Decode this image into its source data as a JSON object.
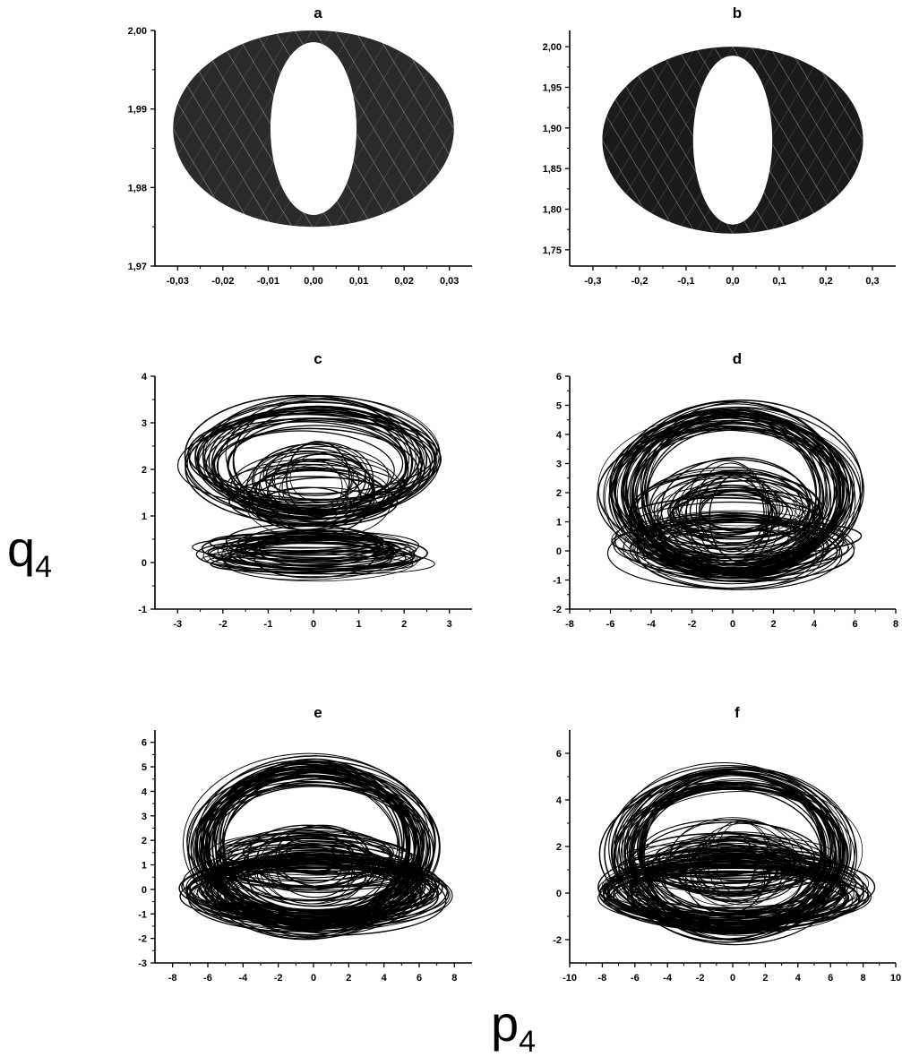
{
  "figure": {
    "ylabel": {
      "main": "q",
      "sub": "4"
    },
    "xlabel": {
      "main": "p",
      "sub": "4"
    }
  },
  "chart_data": [
    {
      "type": "line",
      "panel": "a",
      "xlim": [
        -0.035,
        0.035
      ],
      "ylim": [
        1.97,
        2.0
      ],
      "xticks": [
        -0.03,
        -0.02,
        -0.01,
        0.0,
        0.01,
        0.02,
        0.03
      ],
      "xtick_labels": [
        "-0,03",
        "-0,02",
        "-0,01",
        "0,00",
        "0,01",
        "0,02",
        "0,03"
      ],
      "yticks": [
        1.97,
        1.98,
        1.99,
        2.0
      ],
      "ytick_labels": [
        "1,97",
        "1,98",
        "1,99",
        "2,00"
      ],
      "shape": {
        "kind": "annulus",
        "center": [
          0.0,
          1.9875
        ],
        "outer": [
          0.031,
          0.0125
        ],
        "inner": [
          0.0095,
          0.011
        ],
        "fill": "#2b2b2b",
        "stripes": true
      }
    },
    {
      "type": "line",
      "panel": "b",
      "xlim": [
        -0.35,
        0.35
      ],
      "ylim": [
        1.73,
        2.02
      ],
      "xticks": [
        -0.3,
        -0.2,
        -0.1,
        0.0,
        0.1,
        0.2,
        0.3
      ],
      "xtick_labels": [
        "-0,3",
        "-0,2",
        "-0,1",
        "0,0",
        "0,1",
        "0,2",
        "0,3"
      ],
      "yticks": [
        1.75,
        1.8,
        1.85,
        1.9,
        1.95,
        2.0
      ],
      "ytick_labels": [
        "1,75",
        "1,80",
        "1,85",
        "1,90",
        "1,95",
        "2,00"
      ],
      "shape": {
        "kind": "annulus",
        "center": [
          0.0,
          1.885
        ],
        "outer": [
          0.28,
          0.115
        ],
        "inner": [
          0.085,
          0.104
        ],
        "fill": "#1a1a1a",
        "stripes": true
      }
    },
    {
      "type": "line",
      "panel": "c",
      "xlim": [
        -3.5,
        3.5
      ],
      "ylim": [
        -1,
        4
      ],
      "xticks": [
        -3,
        -2,
        -1,
        0,
        1,
        2,
        3
      ],
      "xtick_labels": [
        "-3",
        "-2",
        "-1",
        "0",
        "1",
        "2",
        "3"
      ],
      "yticks": [
        -1,
        0,
        1,
        2,
        3,
        4
      ],
      "ytick_labels": [
        "-1",
        "0",
        "1",
        "2",
        "3",
        "4"
      ],
      "shape": {
        "kind": "tangle",
        "seed": 11,
        "count": 95,
        "bands": [
          {
            "cy": [
              2.0,
              2.35
            ],
            "ry": [
              0.8,
              1.35
            ],
            "rx": [
              1.9,
              2.85
            ],
            "w": 0.38
          },
          {
            "cy": [
              1.2,
              1.9
            ],
            "ry": [
              0.3,
              0.9
            ],
            "rx": [
              0.6,
              2.0
            ],
            "w": 0.25
          },
          {
            "cy": [
              0.0,
              0.45
            ],
            "ry": [
              0.12,
              0.45
            ],
            "rx": [
              1.3,
              2.5
            ],
            "w": 0.37
          }
        ]
      }
    },
    {
      "type": "line",
      "panel": "d",
      "xlim": [
        -8,
        8
      ],
      "ylim": [
        -2,
        6
      ],
      "xticks": [
        -8,
        -6,
        -4,
        -2,
        0,
        2,
        4,
        6,
        8
      ],
      "xtick_labels": [
        "-8",
        "-6",
        "-4",
        "-2",
        "0",
        "2",
        "4",
        "6",
        "8"
      ],
      "yticks": [
        -2,
        -1,
        0,
        1,
        2,
        3,
        4,
        5,
        6
      ],
      "ytick_labels": [
        "-2",
        "-1",
        "0",
        "1",
        "2",
        "3",
        "4",
        "5",
        "6"
      ],
      "shape": {
        "kind": "tangle",
        "seed": 23,
        "count": 110,
        "bands": [
          {
            "cy": [
              1.8,
              2.2
            ],
            "ry": [
              2.2,
              3.0
            ],
            "rx": [
              4.2,
              6.2
            ],
            "w": 0.45
          },
          {
            "cy": [
              0.9,
              1.6
            ],
            "ry": [
              0.6,
              1.8
            ],
            "rx": [
              1.5,
              5.0
            ],
            "w": 0.3
          },
          {
            "cy": [
              -0.1,
              0.5
            ],
            "ry": [
              0.6,
              1.3
            ],
            "rx": [
              3.5,
              6.3
            ],
            "w": 0.25
          }
        ]
      }
    },
    {
      "type": "line",
      "panel": "e",
      "xlim": [
        -9,
        9
      ],
      "ylim": [
        -3,
        6.5
      ],
      "xticks": [
        -8,
        -6,
        -4,
        -2,
        0,
        2,
        4,
        6,
        8
      ],
      "xtick_labels": [
        "-8",
        "-6",
        "-4",
        "-2",
        "0",
        "2",
        "4",
        "6",
        "8"
      ],
      "yticks": [
        -3,
        -2,
        -1,
        0,
        1,
        2,
        3,
        4,
        5,
        6
      ],
      "ytick_labels": [
        "-3",
        "-2",
        "-1",
        "0",
        "1",
        "2",
        "3",
        "4",
        "5",
        "6"
      ],
      "shape": {
        "kind": "tangle",
        "seed": 37,
        "count": 125,
        "bands": [
          {
            "cy": [
              1.5,
              2.0
            ],
            "ry": [
              2.6,
              3.7
            ],
            "rx": [
              5.2,
              7.0
            ],
            "w": 0.4
          },
          {
            "cy": [
              0.5,
              1.5
            ],
            "ry": [
              0.5,
              1.6
            ],
            "rx": [
              1.5,
              6.0
            ],
            "w": 0.3
          },
          {
            "cy": [
              -0.4,
              0.2
            ],
            "ry": [
              1.0,
              1.6
            ],
            "rx": [
              5.0,
              7.6
            ],
            "w": 0.3
          }
        ]
      }
    },
    {
      "type": "line",
      "panel": "f",
      "xlim": [
        -10,
        10
      ],
      "ylim": [
        -3,
        7
      ],
      "xticks": [
        -10,
        -8,
        -6,
        -4,
        -2,
        0,
        2,
        4,
        6,
        8,
        10
      ],
      "xtick_labels": [
        "-10",
        "-8",
        "-6",
        "-4",
        "-2",
        "0",
        "2",
        "4",
        "6",
        "8",
        "10"
      ],
      "yticks": [
        -2,
        0,
        2,
        4,
        6
      ],
      "ytick_labels": [
        "-2",
        "0",
        "2",
        "4",
        "6"
      ],
      "shape": {
        "kind": "tangle",
        "seed": 53,
        "count": 125,
        "bands": [
          {
            "cy": [
              1.5,
              2.0
            ],
            "ry": [
              2.7,
              3.8
            ],
            "rx": [
              5.6,
              7.6
            ],
            "w": 0.4
          },
          {
            "cy": [
              0.6,
              1.6
            ],
            "ry": [
              0.5,
              1.8
            ],
            "rx": [
              1.5,
              6.5
            ],
            "w": 0.3
          },
          {
            "cy": [
              -0.3,
              0.4
            ],
            "ry": [
              1.0,
              1.7
            ],
            "rx": [
              5.5,
              8.2
            ],
            "w": 0.3
          }
        ]
      }
    }
  ]
}
